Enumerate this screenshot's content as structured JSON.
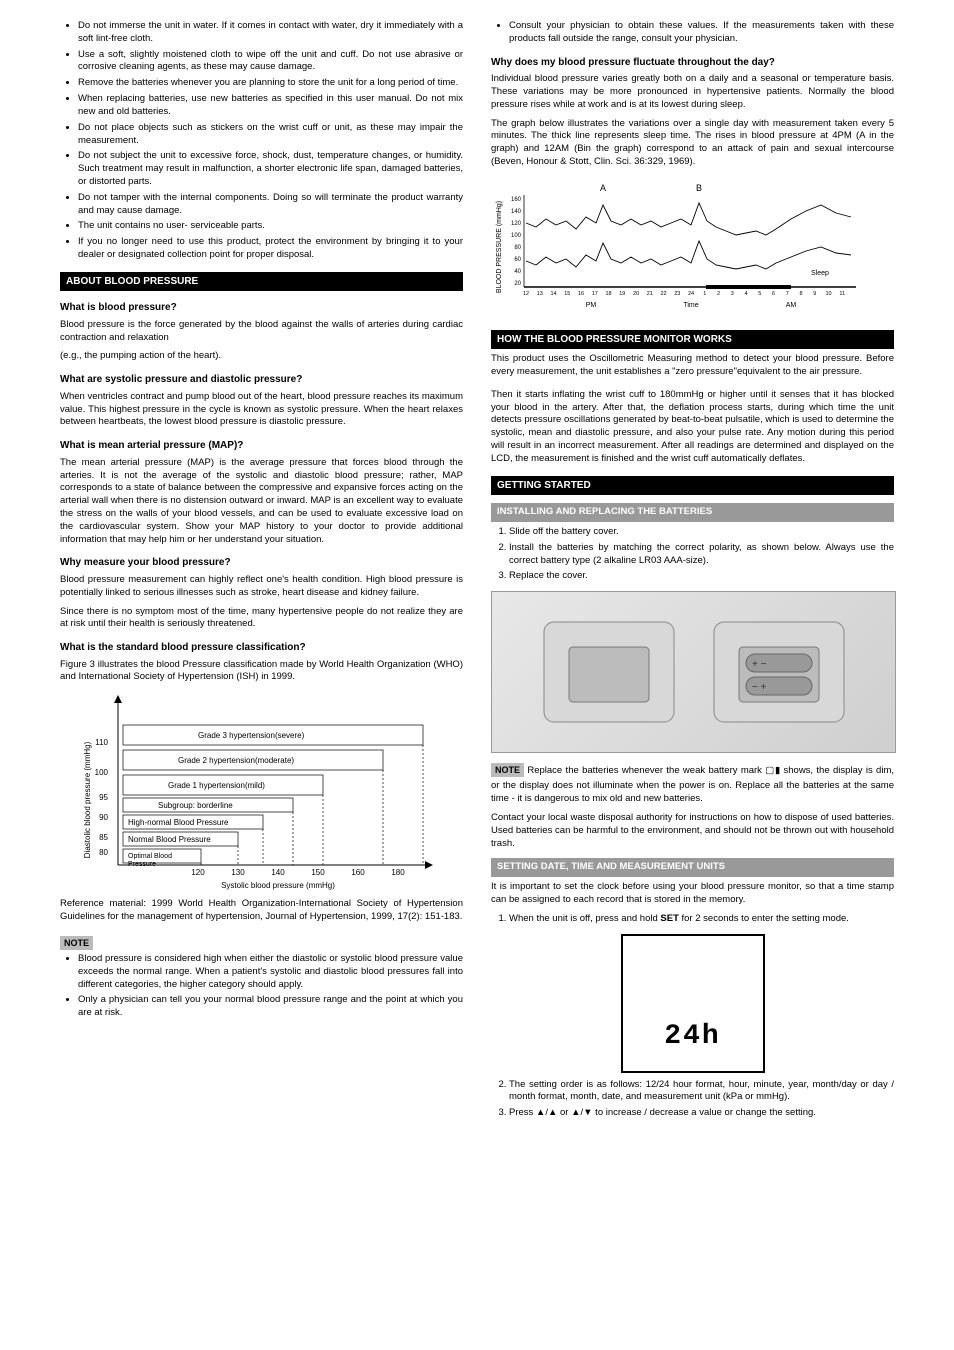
{
  "col1": {
    "care_bullets": [
      "Do not immerse the unit in water. If it comes in contact with water, dry it immediately with a soft lint-free cloth.",
      "Use a soft, slightly moistened cloth to wipe off the unit and cuff. Do not use abrasive or corrosive cleaning agents, as these may cause damage.",
      "Remove the batteries whenever you are planning to store the unit for a long period of time.",
      "When replacing batteries, use new batteries as specified in this user manual. Do not mix new and old batteries.",
      "Do not place objects such as stickers on the wrist cuff or unit, as these may impair the measurement.",
      "Do not subject the unit to excessive force, shock, dust, temperature changes, or humidity. Such treatment may result in malfunction, a shorter electronic life span, damaged batteries, or distorted parts.",
      "Do not tamper with the internal components. Doing so will terminate the product warranty and may cause damage.",
      "The unit contains no user- serviceable parts.",
      "If you no longer need to use this product, protect the environment by bringing it to your dealer or designated collection point for proper disposal."
    ],
    "sec_about": "ABOUT BLOOD PRESSURE",
    "q_what": "What is blood pressure?",
    "a_what_1": "Blood pressure is the force generated by the blood against the walls of arteries during cardiac contraction and relaxation",
    "a_what_2": "(e.g., the pumping action of the heart).",
    "q_sysdia": "What are systolic pressure and diastolic pressure?",
    "a_sysdia": "When ventricles contract and pump blood out of the heart, blood pressure reaches its maximum value. This highest pressure in the cycle is known as systolic pressure. When the heart relaxes between heartbeats, the lowest blood pressure is diastolic pressure.",
    "q_map": "What is mean arterial pressure (MAP)?",
    "a_map": "The mean arterial pressure (MAP) is the average pressure that forces blood through the arteries. It is not the average of the systolic and diastolic blood pressure; rather, MAP corresponds to a state of balance between the compressive and expansive forces acting on the arterial wall when there is no distension outward or inward. MAP is an excellent way to evaluate the stress on the walls of your blood vessels, and can be used to evaluate excessive load on the cardiovascular system. Show your MAP history to your doctor to provide additional information that may help him or her understand your situation.",
    "q_why": "Why measure your blood pressure?",
    "a_why_1": "Blood pressure measurement can highly reflect one's health condition. High blood pressure is potentially linked to serious illnesses such as stroke, heart disease and kidney failure.",
    "a_why_2": "Since there is no symptom most of the time, many hypertensive people do not realize they are at risk until their health is seriously threatened.",
    "q_std": "What is the standard blood pressure classification?",
    "a_std": "Figure 3 illustrates the blood Pressure classification made by World Health Organization (WHO) and International Society of Hypertension (ISH) in 1999.",
    "bp_chart": {
      "y_label": "Diastolic blood pressure (mmHg)",
      "x_label": "Systolic blood pressure (mmHg)",
      "y_ticks": [
        "80",
        "85",
        "90",
        "95",
        "100",
        "110"
      ],
      "x_ticks": [
        "120",
        "130",
        "140",
        "150",
        "160",
        "180"
      ],
      "bands": [
        "Grade 3 hypertension(severe)",
        "Grade 2 hypertension(moderate)",
        "Grade 1 hypertension(mild)",
        "Subgroup: borderline",
        "High-normal Blood Pressure",
        "Normal Blood Pressure",
        "Optimal Blood Pressure"
      ],
      "bg": "#ffffff",
      "line": "#000000"
    },
    "ref": "Reference material: 1999 World Health Organization-International Society of Hypertension Guidelines for the management of hypertension, Journal of Hypertension, 1999, 17(2): 151-183.",
    "note_label": "NOTE",
    "note_bullets": [
      "Blood pressure is considered high when either the diastolic or systolic blood pressure value exceeds the normal range. When a patient's systolic and diastolic blood pressures fall into different categories, the higher category should apply.",
      "Only a physician can tell you your normal blood pressure range and the point at which you are at risk."
    ]
  },
  "col2": {
    "top_bullets": [
      "Consult your physician to obtain these values. If the measurements taken with these products fall outside the range, consult your physician."
    ],
    "q_fluct": "Why does my blood pressure fluctuate throughout the day?",
    "a_fluct": "Individual blood pressure varies greatly both on a daily and a seasonal or temperature basis. These variations may be more pronounced in hypertensive patients. Normally the blood pressure rises while at work and is at its lowest during sleep.",
    "a_graph": "The graph below illustrates the variations over a single day with measurement taken every 5 minutes. The thick line represents sleep time. The rises in blood pressure at 4PM (A in the graph) and 12AM (Bin the graph) correspond to an attack of pain and sexual intercourse (Beven, Honour & Stott, Clin. Sci. 36:329, 1969).",
    "day_graph": {
      "y_label": "BLOOD PRESSURE (mmHg)",
      "y_ticks": [
        "20",
        "40",
        "60",
        "80",
        "100",
        "120",
        "140",
        "160"
      ],
      "x_pm": [
        "12",
        "13",
        "14",
        "15",
        "16",
        "17",
        "18",
        "19",
        "20",
        "21",
        "22",
        "23",
        "24"
      ],
      "x_am": [
        "1",
        "2",
        "3",
        "4",
        "5",
        "6",
        "7",
        "8",
        "9",
        "10",
        "11"
      ],
      "markers": {
        "A": "A",
        "B": "B"
      },
      "pm_label": "PM",
      "am_label": "AM",
      "time_label": "Time",
      "sleep_label": "Sleep"
    },
    "sec_how": "HOW THE BLOOD PRESSURE MONITOR WORKS",
    "a_how_1": "This product uses the Oscillometric Measuring method to detect your blood pressure. Before every measurement, the unit establishes a \"zero pressure\"equivalent to the air pressure.",
    "a_how_2": "Then it starts inflating the wrist cuff to 180mmHg or higher until it senses that it has blocked your blood in the artery. After that, the deflation process starts, during which time the unit detects pressure oscillations generated by beat-to-beat pulsatile, which is used to determine the systolic, mean and diastolic pressure, and also your pulse rate. Any motion during this period will result in an incorrect measurement. After all readings are determined and displayed on the LCD, the measurement is finished and the wrist cuff automatically deflates.",
    "sec_get": "GETTING STARTED",
    "sub_bat": "INSTALLING AND REPLACING THE BATTERIES",
    "bat_steps": [
      "Slide off the battery cover.",
      "Install the batteries by matching the correct polarity, as shown below. Always use the correct battery type (2 alkaline LR03 AAA-size).",
      "Replace the cover."
    ],
    "note_label": "NOTE",
    "note_bat": "Replace the batteries whenever the weak battery mark ▢▮ shows, the display is dim, or the display does not illuminate when the power is on. Replace all the batteries at the same time - it is dangerous to mix old and new batteries.",
    "note_disposal": "Contact your local waste disposal authority for instructions on how to dispose of used batteries. Used batteries can be harmful to the environment, and should not be thrown out with household trash.",
    "sub_time": "SETTING DATE, TIME AND MEASUREMENT UNITS",
    "a_time": "It is important to set the clock before using your blood pressure monitor, so that a time stamp can be assigned to each record that is stored in the memory.",
    "time_step1_pre": "When the unit is off, press and hold ",
    "time_step1_bold": "SET",
    "time_step1_post": " for 2 seconds to enter the setting mode.",
    "lcd_text": "24h",
    "time_step2": "The setting order is as follows: 12/24 hour format, hour, minute, year, month/day or day / month format, month, date, and measurement unit (kPa or mmHg).",
    "time_step3": "Press ▲/▲ or ▲/▼ to increase / decrease a value or change the setting."
  }
}
